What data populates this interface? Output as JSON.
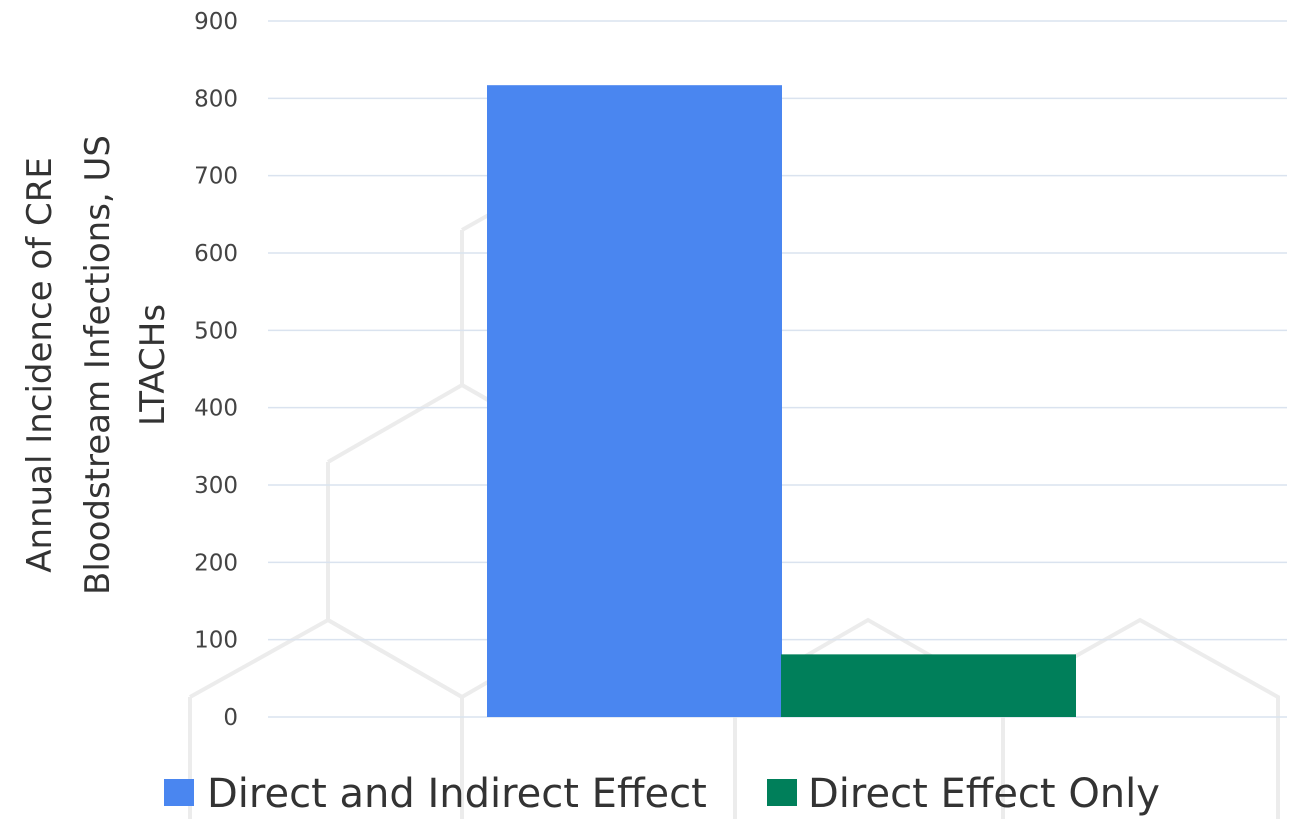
{
  "chart_data": {
    "type": "bar",
    "title": "",
    "categories": [
      ""
    ],
    "series": [
      {
        "name": "Direct and Indirect Effect",
        "values": [
          817
        ],
        "color": "#4a86f0"
      },
      {
        "name": "Direct Effect Only",
        "values": [
          81
        ],
        "color": "#007f5a"
      }
    ],
    "ylabel_lines": [
      "Annual Incidence of CRE",
      "Bloodstream Infections, US",
      "LTACHs"
    ],
    "ylim": [
      0,
      900
    ],
    "yticks": [
      "0",
      "100",
      "200",
      "300",
      "400",
      "500",
      "600",
      "700",
      "800",
      "900"
    ],
    "grid": true,
    "legend_position": "bottom"
  }
}
